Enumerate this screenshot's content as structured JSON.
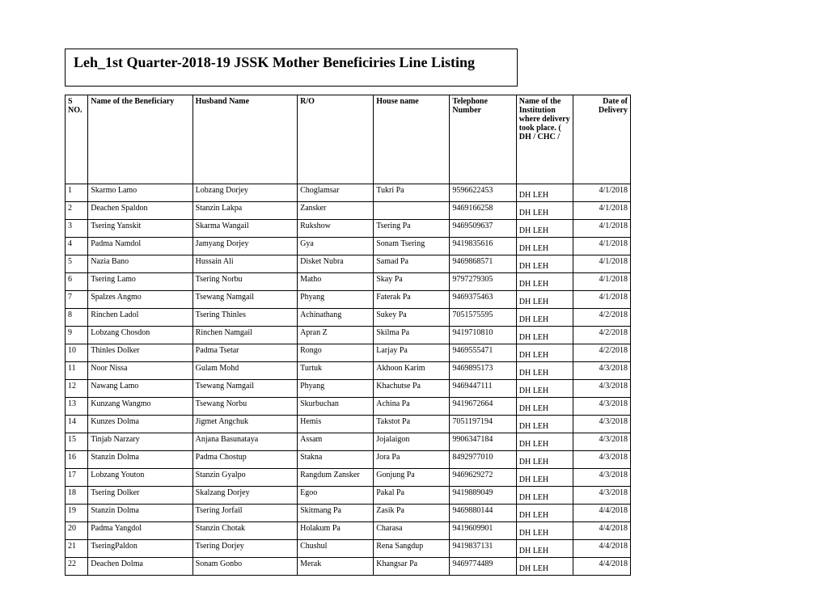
{
  "title": "Leh_1st Quarter-2018-19 JSSK Mother Beneficiries Line Listing",
  "columns": {
    "sno": "S NO.",
    "beneficiary": "Name of the Beneficiary",
    "husband": "Husband Name",
    "ro": "R/O",
    "house": "House name",
    "telephone": "Telephone Number",
    "institution": "Name of the Institution where delivery took place. ( DH / CHC /",
    "date": "Date of Delivery"
  },
  "rows": [
    {
      "sno": "1",
      "beneficiary": "Skarmo Lamo",
      "husband": "Lobzang Dorjey",
      "ro": "Choglamsar",
      "house": "Tukri Pa",
      "telephone": "9596622453",
      "institution": "DH LEH",
      "date": "4/1/2018"
    },
    {
      "sno": "2",
      "beneficiary": "Deachen Spaldon",
      "husband": "Stanzin Lakpa",
      "ro": "Zansker",
      "house": "",
      "telephone": "9469166258",
      "institution": "DH LEH",
      "date": "4/1/2018"
    },
    {
      "sno": "3",
      "beneficiary": "Tsering Yanskit",
      "husband": "Skarma Wangail",
      "ro": "Rukshow",
      "house": "Tsering Pa",
      "telephone": "9469509637",
      "institution": "DH LEH",
      "date": "4/1/2018"
    },
    {
      "sno": "4",
      "beneficiary": "Padma Namdol",
      "husband": "Jamyang Dorjey",
      "ro": "Gya",
      "house": "Sonam Tsering",
      "telephone": "9419835616",
      "institution": "DH LEH",
      "date": "4/1/2018"
    },
    {
      "sno": "5",
      "beneficiary": "Nazia Bano",
      "husband": "Hussain Ali",
      "ro": "Disket Nubra",
      "house": "Samad Pa",
      "telephone": "9469868571",
      "institution": "DH LEH",
      "date": "4/1/2018"
    },
    {
      "sno": "6",
      "beneficiary": "Tsering Lamo",
      "husband": "Tsering Norbu",
      "ro": "Matho",
      "house": "Skay Pa",
      "telephone": "9797279305",
      "institution": "DH LEH",
      "date": "4/1/2018"
    },
    {
      "sno": "7",
      "beneficiary": "Spalzes Angmo",
      "husband": "Tsewang Namgail",
      "ro": "Phyang",
      "house": "Faterak Pa",
      "telephone": "9469375463",
      "institution": "DH LEH",
      "date": "4/1/2018"
    },
    {
      "sno": "8",
      "beneficiary": "Rinchen Ladol",
      "husband": "Tsering Thinles",
      "ro": "Achinathang",
      "house": "Sukey Pa",
      "telephone": "7051575595",
      "institution": "DH LEH",
      "date": "4/2/2018"
    },
    {
      "sno": "9",
      "beneficiary": "Lobzang Chosdon",
      "husband": "Rinchen Namgail",
      "ro": "Apran Z",
      "house": "Skilma Pa",
      "telephone": "9419710810",
      "institution": "DH LEH",
      "date": "4/2/2018"
    },
    {
      "sno": "10",
      "beneficiary": "Thinles Dolker",
      "husband": "Padma Tsetar",
      "ro": "Rongo",
      "house": "Larjay Pa",
      "telephone": "9469555471",
      "institution": "DH LEH",
      "date": "4/2/2018"
    },
    {
      "sno": "11",
      "beneficiary": "Noor Nissa",
      "husband": "Gulam Mohd",
      "ro": "Turtuk",
      "house": "Akhoon Karim",
      "telephone": "9469895173",
      "institution": "DH LEH",
      "date": "4/3/2018"
    },
    {
      "sno": "12",
      "beneficiary": "Nawang Lamo",
      "husband": "Tsewang Namgail",
      "ro": "Phyang",
      "house": "Khachutse Pa",
      "telephone": "9469447111",
      "institution": "DH LEH",
      "date": "4/3/2018"
    },
    {
      "sno": "13",
      "beneficiary": "Kunzang Wangmo",
      "husband": "Tsewang Norbu",
      "ro": "Skurbuchan",
      "house": "Achina Pa",
      "telephone": "9419672664",
      "institution": "DH LEH",
      "date": "4/3/2018"
    },
    {
      "sno": "14",
      "beneficiary": "Kunzes Dolma",
      "husband": "Jigmet Angchuk",
      "ro": "Hemis",
      "house": "Takstot Pa",
      "telephone": "7051197194",
      "institution": "DH LEH",
      "date": "4/3/2018"
    },
    {
      "sno": "15",
      "beneficiary": "Tinjab Narzary",
      "husband": "Anjana Basunataya",
      "ro": "Assam",
      "house": "Jojalaigon",
      "telephone": "9906347184",
      "institution": "DH LEH",
      "date": "4/3/2018"
    },
    {
      "sno": "16",
      "beneficiary": "Stanzin Dolma",
      "husband": "Padma Chostup",
      "ro": "Stakna",
      "house": "Jora Pa",
      "telephone": "8492977010",
      "institution": "DH LEH",
      "date": "4/3/2018"
    },
    {
      "sno": "17",
      "beneficiary": "Lobzang Youton",
      "husband": "Stanzin Gyalpo",
      "ro": "Rangdum Zansker",
      "house": "Gonjung Pa",
      "telephone": "9469629272",
      "institution": "DH LEH",
      "date": "4/3/2018"
    },
    {
      "sno": "18",
      "beneficiary": "Tsering Dolker",
      "husband": "Skalzang Dorjey",
      "ro": "Egoo",
      "house": "Pakal Pa",
      "telephone": "9419889049",
      "institution": "DH LEH",
      "date": "4/3/2018"
    },
    {
      "sno": "19",
      "beneficiary": "Stanzin Dolma",
      "husband": "Tsering Jorfail",
      "ro": "Skitmang Pa",
      "house": "Zasik Pa",
      "telephone": "9469880144",
      "institution": "DH LEH",
      "date": "4/4/2018"
    },
    {
      "sno": "20",
      "beneficiary": "Padma Yangdol",
      "husband": "Stanzin Chotak",
      "ro": "Holakum Pa",
      "house": "Charasa",
      "telephone": "9419609901",
      "institution": "DH LEH",
      "date": "4/4/2018"
    },
    {
      "sno": "21",
      "beneficiary": "TseringPaldon",
      "husband": "Tsering Dorjey",
      "ro": "Chushul",
      "house": "Rena Sangdup",
      "telephone": "9419837131",
      "institution": "DH LEH",
      "date": "4/4/2018"
    },
    {
      "sno": "22",
      "beneficiary": "Deachen Dolma",
      "husband": "Sonam Gonbo",
      "ro": "Merak",
      "house": "Khangsar Pa",
      "telephone": "9469774489",
      "institution": "DH LEH",
      "date": "4/4/2018"
    }
  ]
}
